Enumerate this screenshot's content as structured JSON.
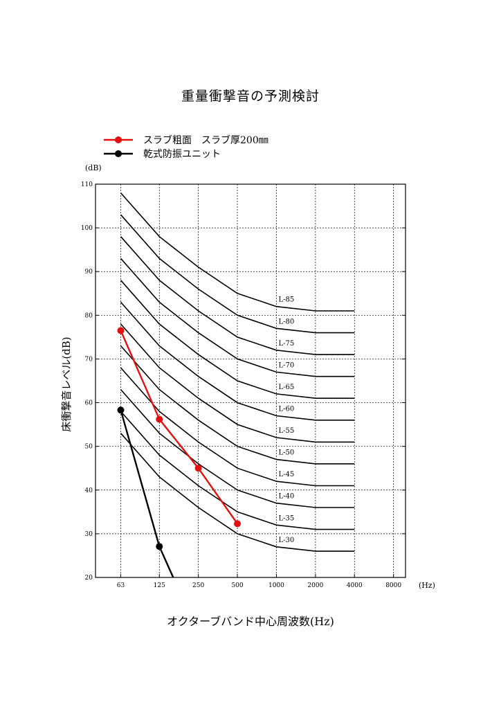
{
  "chart_data": {
    "type": "line",
    "title": "重量衝撃音の予測検討",
    "xlabel": "オクターブバンド中心周波数(Hz)",
    "ylabel": "床衝撃音レベル(dB)",
    "y_unit": "(dB)",
    "x_unit": "(Hz)",
    "x_categories": [
      "63",
      "125",
      "250",
      "500",
      "1000",
      "2000",
      "4000",
      "8000"
    ],
    "yticks": [
      20,
      30,
      40,
      50,
      60,
      70,
      80,
      90,
      100,
      110
    ],
    "ylim": [
      20,
      110
    ],
    "grid": true,
    "legend_position": "top-left",
    "series": [
      {
        "name": "スラブ粗面　スラブ厚200㎜",
        "color": "#e41010",
        "x": [
          "63",
          "125",
          "250",
          "500"
        ],
        "values": [
          76.5,
          56.2,
          45.0,
          32.3
        ]
      },
      {
        "name": "乾式防振ユニット",
        "color": "#000000",
        "x": [
          "63",
          "125",
          "160"
        ],
        "values": [
          58.3,
          27.1,
          20.0
        ]
      }
    ],
    "reference_curves": {
      "x": [
        "63",
        "125",
        "250",
        "500",
        "1000",
        "2000",
        "4000"
      ],
      "curves": [
        {
          "name": "L-85",
          "values": [
            108,
            98,
            91,
            85,
            82,
            81,
            81
          ]
        },
        {
          "name": "L-80",
          "values": [
            103,
            93,
            86,
            80,
            77,
            76,
            76
          ]
        },
        {
          "name": "L-75",
          "values": [
            98,
            88,
            81,
            75,
            72,
            71,
            71
          ]
        },
        {
          "name": "L-70",
          "values": [
            93,
            83,
            76,
            70,
            67,
            66,
            66
          ]
        },
        {
          "name": "L-65",
          "values": [
            88,
            78,
            71,
            65,
            62,
            61,
            61
          ]
        },
        {
          "name": "L-60",
          "values": [
            83,
            73,
            66,
            60,
            57,
            56,
            56
          ]
        },
        {
          "name": "L-55",
          "values": [
            78,
            68,
            61,
            55,
            52,
            51,
            51
          ]
        },
        {
          "name": "L-50",
          "values": [
            73,
            63,
            56,
            50,
            47,
            46,
            46
          ]
        },
        {
          "name": "L-45",
          "values": [
            68,
            58,
            51,
            45,
            42,
            41,
            41
          ]
        },
        {
          "name": "L-40",
          "values": [
            63,
            53,
            46,
            40,
            37,
            36,
            36
          ]
        },
        {
          "name": "L-35",
          "values": [
            58,
            48,
            41,
            35,
            32,
            31,
            31
          ]
        },
        {
          "name": "L-30",
          "values": [
            53,
            43,
            36,
            30,
            27,
            26,
            26
          ]
        }
      ]
    }
  }
}
